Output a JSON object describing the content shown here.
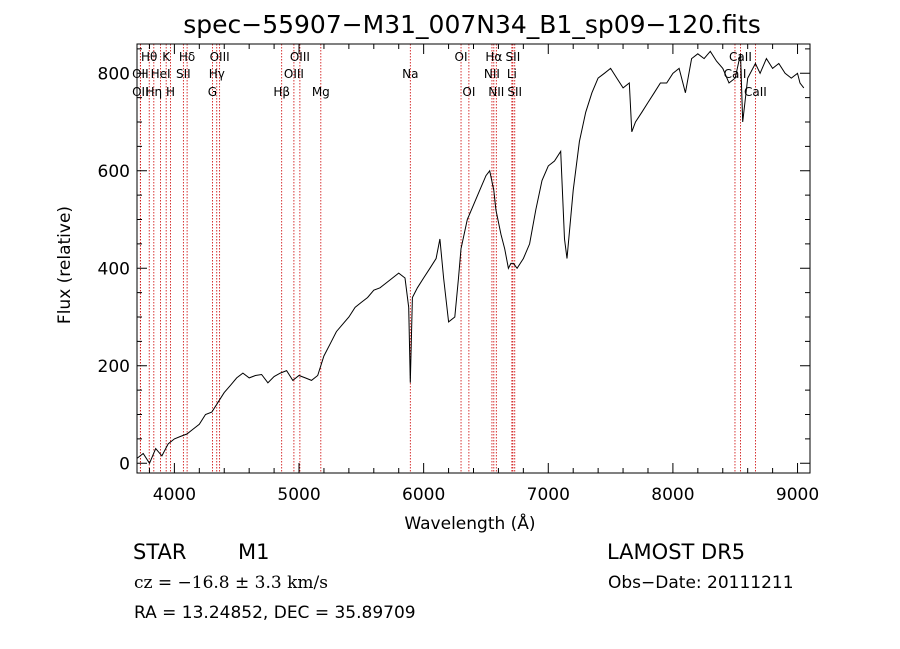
{
  "chart_data": {
    "type": "line",
    "title": "spec−55907−M31_007N34_B1_sp09−120.fits",
    "xlabel": "Wavelength (Å)",
    "ylabel": "Flux (relative)",
    "xlim": [
      3700,
      9100
    ],
    "ylim": [
      -20,
      860
    ],
    "xticks": [
      4000,
      5000,
      6000,
      7000,
      8000,
      9000
    ],
    "yticks": [
      0,
      200,
      400,
      600,
      800
    ],
    "grid": false,
    "series": [
      {
        "color": "#000000",
        "x": [
          3700,
          3750,
          3800,
          3850,
          3900,
          3950,
          4000,
          4050,
          4100,
          4150,
          4200,
          4250,
          4300,
          4350,
          4400,
          4450,
          4500,
          4550,
          4600,
          4650,
          4700,
          4750,
          4800,
          4850,
          4900,
          4950,
          5000,
          5050,
          5100,
          5150,
          5200,
          5250,
          5300,
          5350,
          5400,
          5450,
          5500,
          5550,
          5600,
          5650,
          5700,
          5750,
          5800,
          5850,
          5880,
          5893,
          5910,
          5950,
          6000,
          6050,
          6100,
          6130,
          6160,
          6200,
          6250,
          6280,
          6300,
          6350,
          6400,
          6450,
          6500,
          6530,
          6563,
          6580,
          6620,
          6650,
          6680,
          6700,
          6720,
          6750,
          6800,
          6850,
          6900,
          6950,
          7000,
          7050,
          7100,
          7130,
          7150,
          7200,
          7250,
          7300,
          7350,
          7400,
          7450,
          7500,
          7550,
          7600,
          7650,
          7670,
          7700,
          7750,
          7800,
          7850,
          7900,
          7950,
          8000,
          8050,
          8100,
          8150,
          8200,
          8250,
          8300,
          8350,
          8400,
          8450,
          8500,
          8542,
          8560,
          8600,
          8662,
          8700,
          8750,
          8800,
          8850,
          8900,
          8950,
          9000,
          9020,
          9050
        ],
        "y": [
          10,
          20,
          0,
          30,
          15,
          40,
          50,
          55,
          60,
          70,
          80,
          100,
          105,
          125,
          145,
          160,
          175,
          185,
          175,
          180,
          182,
          165,
          178,
          185,
          190,
          170,
          180,
          175,
          170,
          180,
          220,
          245,
          270,
          285,
          300,
          320,
          330,
          340,
          355,
          360,
          370,
          380,
          390,
          380,
          320,
          165,
          340,
          360,
          380,
          400,
          420,
          460,
          380,
          290,
          300,
          380,
          440,
          500,
          530,
          560,
          590,
          600,
          560,
          520,
          470,
          440,
          400,
          410,
          410,
          400,
          420,
          450,
          520,
          580,
          610,
          620,
          640,
          460,
          420,
          560,
          660,
          720,
          760,
          790,
          800,
          810,
          790,
          770,
          780,
          680,
          700,
          720,
          740,
          760,
          780,
          780,
          800,
          810,
          760,
          830,
          840,
          830,
          845,
          825,
          810,
          780,
          790,
          840,
          700,
          790,
          820,
          800,
          830,
          810,
          820,
          800,
          790,
          800,
          780,
          770
        ],
        "values_note": ""
      }
    ],
    "lines": [
      {
        "name": "Hθ",
        "wave": 3798,
        "row": 0
      },
      {
        "name": "OII",
        "wave": 3727,
        "row": 2
      },
      {
        "name": "K",
        "wave": 3934,
        "row": 0
      },
      {
        "name": "Hη",
        "wave": 3835,
        "row": 2
      },
      {
        "name": "H",
        "wave": 3969,
        "row": 2
      },
      {
        "name": "OII",
        "wave": 3727,
        "row": 1
      },
      {
        "name": "HeI",
        "wave": 3889,
        "row": 1
      },
      {
        "name": "Hδ",
        "wave": 4102,
        "row": 0
      },
      {
        "name": "SII",
        "wave": 4072,
        "row": 1
      },
      {
        "name": "OIII",
        "wave": 4363,
        "row": 0
      },
      {
        "name": "Hγ",
        "wave": 4340,
        "row": 1
      },
      {
        "name": "G",
        "wave": 4305,
        "row": 2
      },
      {
        "name": "Hβ",
        "wave": 4861,
        "row": 2
      },
      {
        "name": "OIII",
        "wave": 4959,
        "row": 1
      },
      {
        "name": "OIII",
        "wave": 5007,
        "row": 0
      },
      {
        "name": "Mg",
        "wave": 5175,
        "row": 2
      },
      {
        "name": "Na",
        "wave": 5893,
        "row": 1
      },
      {
        "name": "OI",
        "wave": 6300,
        "row": 0
      },
      {
        "name": "OI",
        "wave": 6363,
        "row": 2
      },
      {
        "name": "Hα",
        "wave": 6563,
        "row": 0
      },
      {
        "name": "NII",
        "wave": 6548,
        "row": 1
      },
      {
        "name": "NII",
        "wave": 6583,
        "row": 2
      },
      {
        "name": "SII",
        "wave": 6716,
        "row": 0
      },
      {
        "name": "Li",
        "wave": 6708,
        "row": 1
      },
      {
        "name": "SII",
        "wave": 6731,
        "row": 2
      },
      {
        "name": "CaII",
        "wave": 8542,
        "row": 0
      },
      {
        "name": "CaII",
        "wave": 8498,
        "row": 1
      },
      {
        "name": "CaII",
        "wave": 8662,
        "row": 2
      }
    ]
  },
  "info": {
    "class": "STAR",
    "subclass": "M1",
    "survey": "LAMOST  DR5",
    "cz": "cz = −16.8 ± 3.3 km/s",
    "obs_date": "Obs−Date: 20111211",
    "radec": "RA =  13.24852, DEC =  35.89709"
  },
  "colors": {
    "spectrum": "#000000",
    "line_markers": "#cc0000",
    "axes": "#000000"
  }
}
